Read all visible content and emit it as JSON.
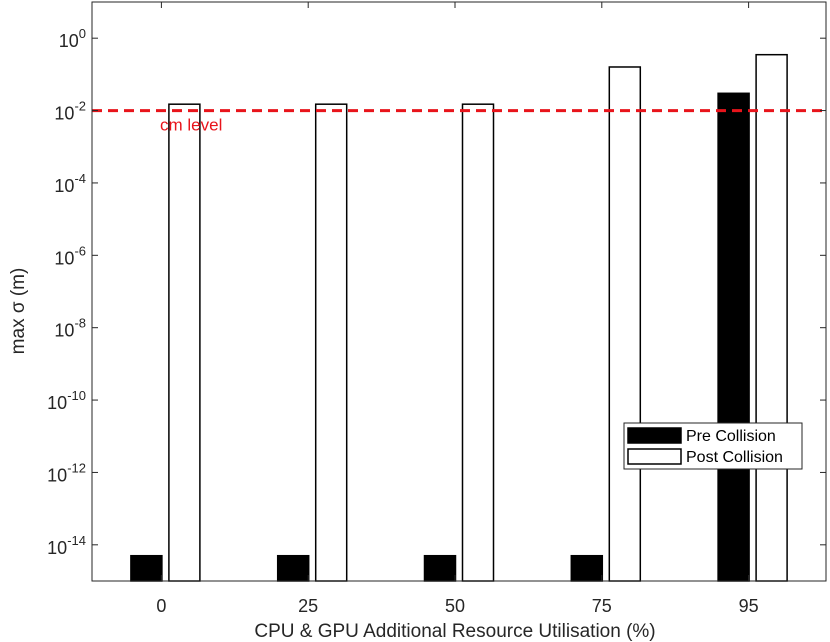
{
  "chart_data": {
    "type": "bar",
    "xlabel": "CPU & GPU Additional Resource Utilisation (%)",
    "ylabel": "max  σ (m)",
    "yscale": "log",
    "ylim": [
      1e-15,
      10
    ],
    "categories": [
      "0",
      "25",
      "50",
      "75",
      "95"
    ],
    "series": [
      {
        "name": "Pre Collision",
        "values": [
          5e-15,
          5e-15,
          5e-15,
          5e-15,
          0.03
        ],
        "fill": "#000000"
      },
      {
        "name": "Post Collision",
        "values": [
          0.015,
          0.015,
          0.015,
          0.16,
          0.35
        ],
        "fill": "#ffffff"
      }
    ],
    "y_ticks": [
      {
        "value": 1,
        "base": "10",
        "exp": "0"
      },
      {
        "value": 0.01,
        "base": "10",
        "exp": "-2"
      },
      {
        "value": 0.0001,
        "base": "10",
        "exp": "-4"
      },
      {
        "value": 1e-06,
        "base": "10",
        "exp": "-6"
      },
      {
        "value": 1e-08,
        "base": "10",
        "exp": "-8"
      },
      {
        "value": 1e-10,
        "base": "10",
        "exp": "-10"
      },
      {
        "value": 1e-12,
        "base": "10",
        "exp": "-12"
      },
      {
        "value": 1e-14,
        "base": "10",
        "exp": "-14"
      }
    ],
    "reference_line": {
      "value": 0.01,
      "label": "cm level",
      "color": "#e8141b",
      "style": "dashed"
    },
    "legend": {
      "position": "bottom-right",
      "entries": [
        "Pre Collision",
        "Post Collision"
      ]
    },
    "grid": false
  }
}
